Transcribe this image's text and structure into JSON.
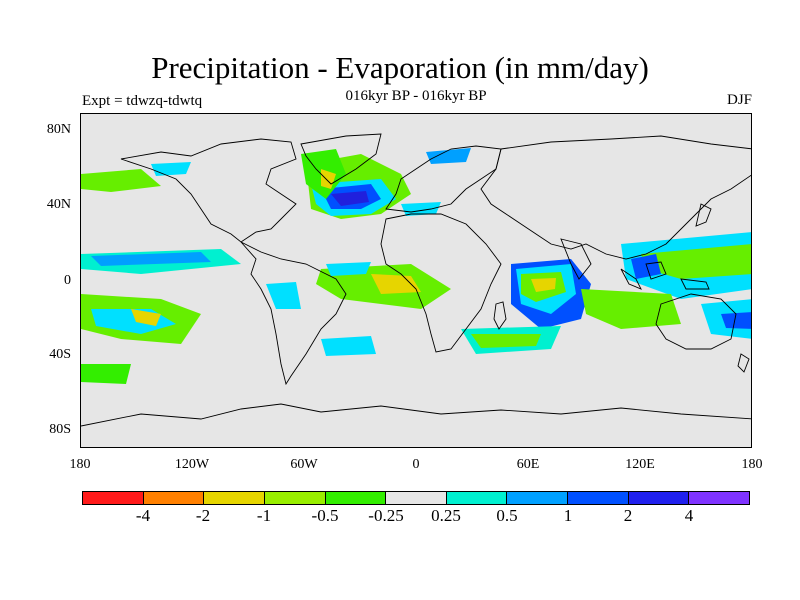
{
  "title": "Precipitation - Evaporation (in mm/day)",
  "subtitle": "016kyr BP - 016kyr BP",
  "left_label": "Expt = tdwzq-tdwtq",
  "right_label": "DJF",
  "map": {
    "land_color": "#e6e6e6",
    "lat_ticks": [
      "80N",
      "40N",
      "0",
      "40S",
      "80S"
    ],
    "lon_ticks": [
      "180",
      "120W",
      "60W",
      "0",
      "60E",
      "120E",
      "180"
    ]
  },
  "colorbar": {
    "colors": [
      "#ff1a1a",
      "#ff8000",
      "#e6d500",
      "#99ee00",
      "#33ee00",
      "#e6e6e6",
      "#00f0d0",
      "#00a0ff",
      "#0050ff",
      "#2020ee",
      "#7f33ff"
    ],
    "labels": [
      "-4",
      "-2",
      "-1",
      "-0.5",
      "-0.25",
      "0.25",
      "0.5",
      "1",
      "2",
      "4"
    ]
  }
}
